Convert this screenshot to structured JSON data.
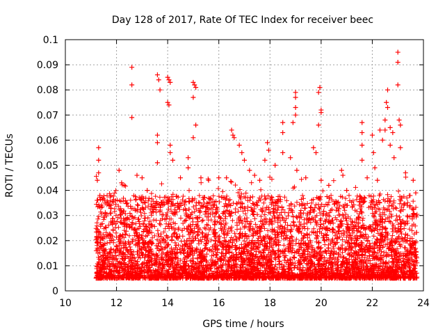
{
  "chart_data": {
    "type": "scatter",
    "title": "Day 128 of 2017, Rate Of TEC Index for receiver beec",
    "xlabel": "GPS time / hours",
    "ylabel": "ROTI / TECUs",
    "xlim": [
      10,
      24
    ],
    "ylim": [
      0,
      0.1
    ],
    "xticks": [
      "10",
      "12",
      "14",
      "16",
      "18",
      "20",
      "22",
      "24"
    ],
    "yticks": [
      "0",
      "0.01",
      "0.02",
      "0.03",
      "0.04",
      "0.05",
      "0.06",
      "0.07",
      "0.08",
      "0.09",
      "0.1"
    ],
    "grid": true,
    "marker": "+",
    "series_color": "#ff0000",
    "series": [
      {
        "name": "ROTI",
        "points": [
          [
            11.3,
            0.057
          ],
          [
            11.3,
            0.052
          ],
          [
            11.3,
            0.047
          ],
          [
            11.25,
            0.044
          ],
          [
            11.35,
            0.038
          ],
          [
            12.1,
            0.048
          ],
          [
            12.2,
            0.043
          ],
          [
            12.3,
            0.042
          ],
          [
            12.6,
            0.089
          ],
          [
            12.6,
            0.082
          ],
          [
            12.6,
            0.069
          ],
          [
            12.8,
            0.046
          ],
          [
            13.0,
            0.045
          ],
          [
            13.2,
            0.04
          ],
          [
            13.6,
            0.086
          ],
          [
            13.65,
            0.084
          ],
          [
            13.7,
            0.08
          ],
          [
            13.6,
            0.062
          ],
          [
            13.6,
            0.059
          ],
          [
            13.6,
            0.051
          ],
          [
            14.0,
            0.085
          ],
          [
            14.05,
            0.084
          ],
          [
            14.1,
            0.083
          ],
          [
            14.0,
            0.075
          ],
          [
            14.05,
            0.074
          ],
          [
            14.1,
            0.058
          ],
          [
            14.1,
            0.055
          ],
          [
            14.2,
            0.052
          ],
          [
            14.5,
            0.045
          ],
          [
            14.8,
            0.053
          ],
          [
            14.8,
            0.049
          ],
          [
            15.0,
            0.083
          ],
          [
            15.05,
            0.082
          ],
          [
            15.1,
            0.081
          ],
          [
            15.0,
            0.077
          ],
          [
            15.1,
            0.066
          ],
          [
            15.0,
            0.061
          ],
          [
            15.3,
            0.045
          ],
          [
            15.6,
            0.044
          ],
          [
            16.0,
            0.045
          ],
          [
            16.3,
            0.045
          ],
          [
            16.5,
            0.064
          ],
          [
            16.55,
            0.062
          ],
          [
            16.6,
            0.061
          ],
          [
            16.8,
            0.058
          ],
          [
            16.9,
            0.055
          ],
          [
            17.0,
            0.052
          ],
          [
            17.2,
            0.048
          ],
          [
            17.4,
            0.046
          ],
          [
            17.6,
            0.044
          ],
          [
            17.9,
            0.059
          ],
          [
            17.95,
            0.056
          ],
          [
            17.8,
            0.052
          ],
          [
            18.2,
            0.05
          ],
          [
            18.5,
            0.067
          ],
          [
            18.5,
            0.063
          ],
          [
            18.5,
            0.055
          ],
          [
            18.8,
            0.053
          ],
          [
            19.0,
            0.079
          ],
          [
            19.0,
            0.077
          ],
          [
            19.0,
            0.073
          ],
          [
            19.0,
            0.07
          ],
          [
            18.9,
            0.067
          ],
          [
            19.05,
            0.048
          ],
          [
            19.4,
            0.045
          ],
          [
            19.7,
            0.057
          ],
          [
            19.8,
            0.055
          ],
          [
            19.95,
            0.081
          ],
          [
            19.9,
            0.079
          ],
          [
            20.0,
            0.072
          ],
          [
            20.0,
            0.071
          ],
          [
            19.9,
            0.066
          ],
          [
            20.0,
            0.044
          ],
          [
            20.3,
            0.042
          ],
          [
            20.8,
            0.048
          ],
          [
            20.85,
            0.046
          ],
          [
            21.0,
            0.04
          ],
          [
            21.6,
            0.067
          ],
          [
            21.6,
            0.063
          ],
          [
            21.6,
            0.058
          ],
          [
            21.6,
            0.052
          ],
          [
            21.8,
            0.045
          ],
          [
            22.0,
            0.062
          ],
          [
            22.05,
            0.055
          ],
          [
            22.1,
            0.049
          ],
          [
            22.2,
            0.044
          ],
          [
            22.3,
            0.064
          ],
          [
            22.4,
            0.06
          ],
          [
            22.5,
            0.068
          ],
          [
            22.5,
            0.064
          ],
          [
            22.55,
            0.075
          ],
          [
            22.6,
            0.08
          ],
          [
            22.6,
            0.073
          ],
          [
            22.7,
            0.065
          ],
          [
            22.7,
            0.058
          ],
          [
            22.8,
            0.063
          ],
          [
            22.85,
            0.053
          ],
          [
            23.0,
            0.095
          ],
          [
            23.0,
            0.091
          ],
          [
            23.0,
            0.082
          ],
          [
            23.05,
            0.068
          ],
          [
            23.1,
            0.066
          ],
          [
            23.1,
            0.057
          ],
          [
            23.3,
            0.047
          ],
          [
            23.6,
            0.044
          ],
          [
            23.7,
            0.039
          ]
        ]
      }
    ]
  }
}
